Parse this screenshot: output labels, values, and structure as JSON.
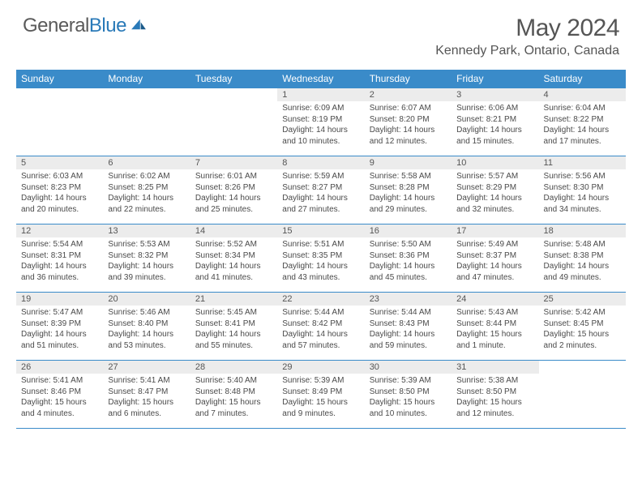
{
  "logo": {
    "text_gray": "General",
    "text_blue": "Blue"
  },
  "title": "May 2024",
  "location": "Kennedy Park, Ontario, Canada",
  "colors": {
    "header_bg": "#3a8bc9",
    "header_text": "#ffffff",
    "daynum_bg": "#ececec",
    "text": "#4a4a4a",
    "border": "#3a8bc9",
    "brand_blue": "#2a7ab8",
    "brand_gray": "#5a5a5a"
  },
  "day_headers": [
    "Sunday",
    "Monday",
    "Tuesday",
    "Wednesday",
    "Thursday",
    "Friday",
    "Saturday"
  ],
  "weeks": [
    [
      null,
      null,
      null,
      {
        "n": "1",
        "sr": "6:09 AM",
        "ss": "8:19 PM",
        "dl": "14 hours and 10 minutes."
      },
      {
        "n": "2",
        "sr": "6:07 AM",
        "ss": "8:20 PM",
        "dl": "14 hours and 12 minutes."
      },
      {
        "n": "3",
        "sr": "6:06 AM",
        "ss": "8:21 PM",
        "dl": "14 hours and 15 minutes."
      },
      {
        "n": "4",
        "sr": "6:04 AM",
        "ss": "8:22 PM",
        "dl": "14 hours and 17 minutes."
      }
    ],
    [
      {
        "n": "5",
        "sr": "6:03 AM",
        "ss": "8:23 PM",
        "dl": "14 hours and 20 minutes."
      },
      {
        "n": "6",
        "sr": "6:02 AM",
        "ss": "8:25 PM",
        "dl": "14 hours and 22 minutes."
      },
      {
        "n": "7",
        "sr": "6:01 AM",
        "ss": "8:26 PM",
        "dl": "14 hours and 25 minutes."
      },
      {
        "n": "8",
        "sr": "5:59 AM",
        "ss": "8:27 PM",
        "dl": "14 hours and 27 minutes."
      },
      {
        "n": "9",
        "sr": "5:58 AM",
        "ss": "8:28 PM",
        "dl": "14 hours and 29 minutes."
      },
      {
        "n": "10",
        "sr": "5:57 AM",
        "ss": "8:29 PM",
        "dl": "14 hours and 32 minutes."
      },
      {
        "n": "11",
        "sr": "5:56 AM",
        "ss": "8:30 PM",
        "dl": "14 hours and 34 minutes."
      }
    ],
    [
      {
        "n": "12",
        "sr": "5:54 AM",
        "ss": "8:31 PM",
        "dl": "14 hours and 36 minutes."
      },
      {
        "n": "13",
        "sr": "5:53 AM",
        "ss": "8:32 PM",
        "dl": "14 hours and 39 minutes."
      },
      {
        "n": "14",
        "sr": "5:52 AM",
        "ss": "8:34 PM",
        "dl": "14 hours and 41 minutes."
      },
      {
        "n": "15",
        "sr": "5:51 AM",
        "ss": "8:35 PM",
        "dl": "14 hours and 43 minutes."
      },
      {
        "n": "16",
        "sr": "5:50 AM",
        "ss": "8:36 PM",
        "dl": "14 hours and 45 minutes."
      },
      {
        "n": "17",
        "sr": "5:49 AM",
        "ss": "8:37 PM",
        "dl": "14 hours and 47 minutes."
      },
      {
        "n": "18",
        "sr": "5:48 AM",
        "ss": "8:38 PM",
        "dl": "14 hours and 49 minutes."
      }
    ],
    [
      {
        "n": "19",
        "sr": "5:47 AM",
        "ss": "8:39 PM",
        "dl": "14 hours and 51 minutes."
      },
      {
        "n": "20",
        "sr": "5:46 AM",
        "ss": "8:40 PM",
        "dl": "14 hours and 53 minutes."
      },
      {
        "n": "21",
        "sr": "5:45 AM",
        "ss": "8:41 PM",
        "dl": "14 hours and 55 minutes."
      },
      {
        "n": "22",
        "sr": "5:44 AM",
        "ss": "8:42 PM",
        "dl": "14 hours and 57 minutes."
      },
      {
        "n": "23",
        "sr": "5:44 AM",
        "ss": "8:43 PM",
        "dl": "14 hours and 59 minutes."
      },
      {
        "n": "24",
        "sr": "5:43 AM",
        "ss": "8:44 PM",
        "dl": "15 hours and 1 minute."
      },
      {
        "n": "25",
        "sr": "5:42 AM",
        "ss": "8:45 PM",
        "dl": "15 hours and 2 minutes."
      }
    ],
    [
      {
        "n": "26",
        "sr": "5:41 AM",
        "ss": "8:46 PM",
        "dl": "15 hours and 4 minutes."
      },
      {
        "n": "27",
        "sr": "5:41 AM",
        "ss": "8:47 PM",
        "dl": "15 hours and 6 minutes."
      },
      {
        "n": "28",
        "sr": "5:40 AM",
        "ss": "8:48 PM",
        "dl": "15 hours and 7 minutes."
      },
      {
        "n": "29",
        "sr": "5:39 AM",
        "ss": "8:49 PM",
        "dl": "15 hours and 9 minutes."
      },
      {
        "n": "30",
        "sr": "5:39 AM",
        "ss": "8:50 PM",
        "dl": "15 hours and 10 minutes."
      },
      {
        "n": "31",
        "sr": "5:38 AM",
        "ss": "8:50 PM",
        "dl": "15 hours and 12 minutes."
      },
      null
    ]
  ],
  "labels": {
    "sunrise": "Sunrise:",
    "sunset": "Sunset:",
    "daylight": "Daylight:"
  }
}
